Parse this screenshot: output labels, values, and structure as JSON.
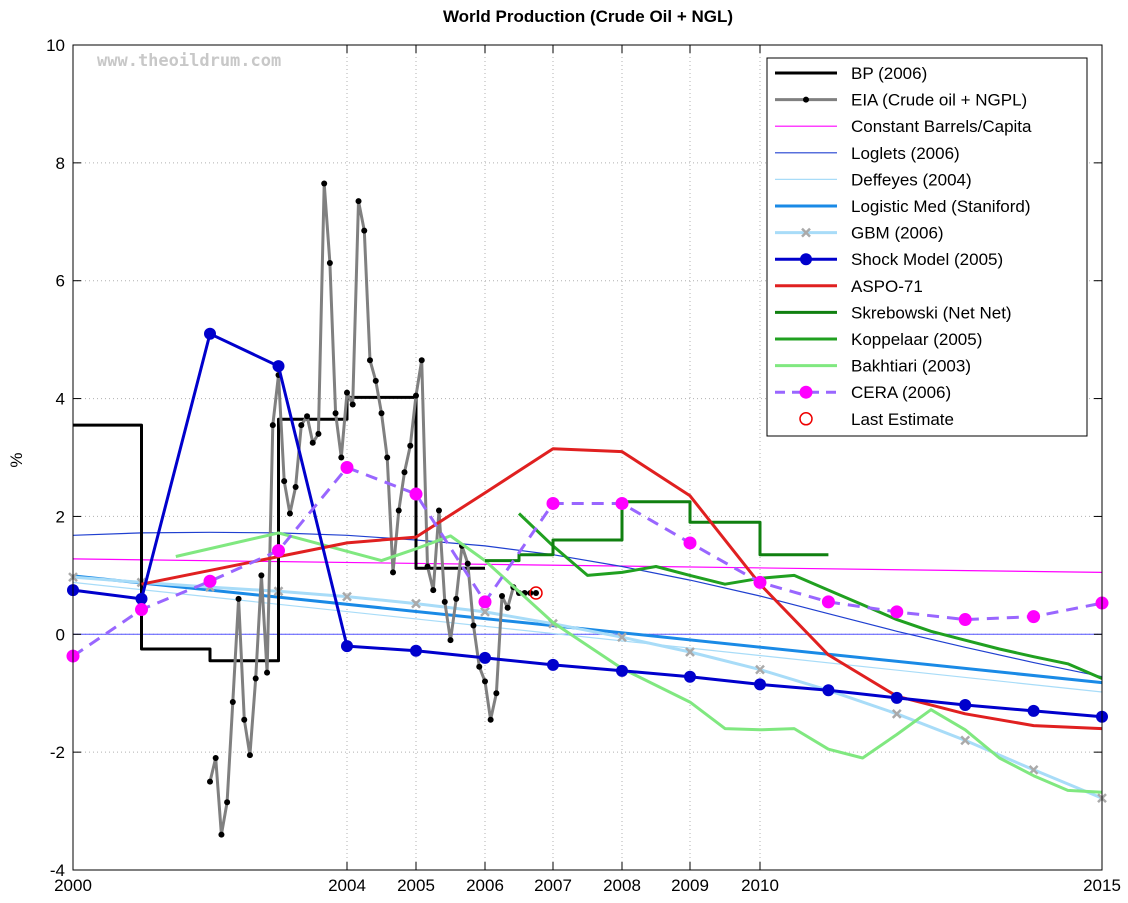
{
  "chart_data": {
    "type": "line",
    "title": "World Production (Crude Oil + NGL)",
    "xlabel": "",
    "ylabel": "%",
    "watermark": "www.theoildrum.com",
    "xlim": [
      2000,
      2015
    ],
    "ylim": [
      -4,
      10
    ],
    "x_ticks": [
      2000,
      2004,
      2005,
      2006,
      2007,
      2008,
      2009,
      2010,
      2015
    ],
    "y_ticks": [
      -4,
      -2,
      0,
      2,
      4,
      6,
      8,
      10
    ],
    "grid": true,
    "legend_position": "top-right",
    "series": [
      {
        "name": "BP (2006)",
        "color": "#000000",
        "style": "step",
        "x": [
          2000,
          2001,
          2001,
          2002,
          2002,
          2003,
          2003,
          2004,
          2004,
          2005,
          2005,
          2006,
          2006
        ],
        "y": [
          3.55,
          3.55,
          -0.25,
          -0.25,
          -0.45,
          -0.45,
          3.65,
          3.65,
          4.02,
          4.02,
          1.12,
          1.12,
          1.12
        ]
      },
      {
        "name": "EIA (Crude oil + NGPL)",
        "color": "#808080",
        "style": "line-dots",
        "x": [
          2002.0,
          2002.083,
          2002.167,
          2002.25,
          2002.333,
          2002.417,
          2002.5,
          2002.583,
          2002.667,
          2002.75,
          2002.833,
          2002.917,
          2003.0,
          2003.083,
          2003.167,
          2003.25,
          2003.333,
          2003.417,
          2003.5,
          2003.583,
          2003.667,
          2003.75,
          2003.833,
          2003.917,
          2004.0,
          2004.083,
          2004.167,
          2004.25,
          2004.333,
          2004.417,
          2004.5,
          2004.583,
          2004.667,
          2004.75,
          2004.833,
          2004.917,
          2005.0,
          2005.083,
          2005.167,
          2005.25,
          2005.333,
          2005.417,
          2005.5,
          2005.583,
          2005.667,
          2005.75,
          2005.833,
          2005.917,
          2006.0,
          2006.083,
          2006.167,
          2006.25,
          2006.333,
          2006.417,
          2006.5,
          2006.583,
          2006.667,
          2006.75
        ],
        "y": [
          -2.5,
          -2.1,
          -3.4,
          -2.85,
          -1.15,
          0.6,
          -1.45,
          -2.05,
          -0.75,
          1.0,
          -0.65,
          3.55,
          4.4,
          2.6,
          2.05,
          2.5,
          3.55,
          3.7,
          3.25,
          3.4,
          7.65,
          6.3,
          3.75,
          3.0,
          4.1,
          3.9,
          7.35,
          6.85,
          4.65,
          4.3,
          3.75,
          3.0,
          1.05,
          2.1,
          2.75,
          3.2,
          4.05,
          4.65,
          1.15,
          0.75,
          2.1,
          0.55,
          -0.1,
          0.6,
          1.5,
          1.2,
          0.15,
          -0.55,
          -0.8,
          -1.45,
          -1.0,
          0.65,
          0.45,
          0.8,
          0.7,
          0.7,
          0.7,
          0.7
        ]
      },
      {
        "name": "Constant Barrels/Capita",
        "color": "#ff00ff",
        "style": "line",
        "width": 1.2,
        "x": [
          2000,
          2015
        ],
        "y": [
          1.28,
          1.05
        ]
      },
      {
        "name": "Loglets (2006)",
        "color": "#2040d0",
        "style": "line",
        "width": 1.2,
        "x": [
          2000,
          2001,
          2002,
          2003,
          2004,
          2005,
          2006,
          2007,
          2008,
          2009,
          2010,
          2011,
          2012,
          2013,
          2014,
          2015
        ],
        "y": [
          1.68,
          1.72,
          1.73,
          1.72,
          1.68,
          1.6,
          1.5,
          1.35,
          1.15,
          0.92,
          0.65,
          0.35,
          0.05,
          -0.22,
          -0.48,
          -0.72
        ]
      },
      {
        "name": "Deffeyes (2004)",
        "color": "#a8dcf8",
        "style": "line",
        "width": 1.2,
        "x": [
          2000,
          2015
        ],
        "y": [
          0.88,
          -0.98
        ]
      },
      {
        "name": "Logistic Med (Staniford)",
        "color": "#1a8ae6",
        "style": "line",
        "width": 3,
        "x": [
          2000,
          2015
        ],
        "y": [
          0.99,
          -0.82
        ]
      },
      {
        "name": "GBM (2006)",
        "color": "#a8dcf8",
        "style": "line-x",
        "width": 3,
        "x": [
          2000,
          2001,
          2002,
          2003,
          2004,
          2005,
          2006,
          2007,
          2008,
          2009,
          2010,
          2011,
          2012,
          2013,
          2014,
          2015
        ],
        "y": [
          0.97,
          0.88,
          0.8,
          0.73,
          0.64,
          0.52,
          0.38,
          0.18,
          -0.05,
          -0.3,
          -0.6,
          -0.95,
          -1.35,
          -1.8,
          -2.3,
          -2.78
        ]
      },
      {
        "name": "Shock Model (2005)",
        "color": "#0000cc",
        "style": "line-dots",
        "width": 3,
        "x": [
          2000,
          2001,
          2002,
          2003,
          2004,
          2005,
          2006,
          2007,
          2008,
          2009,
          2010,
          2011,
          2012,
          2013,
          2014,
          2015
        ],
        "y": [
          0.75,
          0.6,
          5.1,
          4.55,
          -0.2,
          -0.28,
          -0.4,
          -0.52,
          -0.62,
          -0.72,
          -0.85,
          -0.95,
          -1.08,
          -1.2,
          -1.3,
          -1.4
        ]
      },
      {
        "name": "ASPO-71",
        "color": "#e02020",
        "style": "line",
        "width": 3,
        "x": [
          2001,
          2004,
          2005,
          2006,
          2007,
          2008,
          2009,
          2010,
          2011,
          2012,
          2013,
          2014,
          2015
        ],
        "y": [
          0.85,
          1.55,
          1.65,
          2.4,
          3.15,
          3.1,
          2.35,
          0.85,
          -0.35,
          -1.05,
          -1.35,
          -1.55,
          -1.6
        ]
      },
      {
        "name": "Skrebowski (Net Net)",
        "color": "#108010",
        "style": "step",
        "width": 3,
        "x": [
          2006,
          2006.5,
          2006.5,
          2007,
          2007,
          2008,
          2008,
          2009,
          2009,
          2010,
          2010,
          2011
        ],
        "y": [
          1.25,
          1.25,
          1.35,
          1.35,
          1.6,
          1.6,
          2.25,
          2.25,
          1.9,
          1.9,
          1.35,
          1.35
        ]
      },
      {
        "name": "Koppelaar (2005)",
        "color": "#20a020",
        "style": "line",
        "width": 3,
        "x": [
          2006.5,
          2007.0,
          2007.5,
          2008.0,
          2008.5,
          2009.0,
          2009.5,
          2010.0,
          2010.5,
          2011.0,
          2011.5,
          2012.0,
          2012.5,
          2013.0,
          2013.5,
          2014.0,
          2014.5,
          2015.0
        ],
        "y": [
          2.05,
          1.5,
          1.0,
          1.05,
          1.15,
          1.0,
          0.85,
          0.95,
          1.0,
          0.75,
          0.5,
          0.25,
          0.05,
          -0.1,
          -0.25,
          -0.38,
          -0.5,
          -0.75
        ]
      },
      {
        "name": "Bakhtiari (2003)",
        "color": "#80e880",
        "style": "line",
        "width": 3,
        "x": [
          2001.5,
          2003.0,
          2004.5,
          2005.0,
          2005.5,
          2006.0,
          2007.0,
          2008.0,
          2009.0,
          2009.5,
          2010.0,
          2010.5,
          2011.0,
          2011.5,
          2012.0,
          2012.5,
          2013.0,
          2013.5,
          2014.0,
          2014.5,
          2015.0
        ],
        "y": [
          1.32,
          1.72,
          1.25,
          1.45,
          1.67,
          1.25,
          0.2,
          -0.58,
          -1.15,
          -1.6,
          -1.62,
          -1.6,
          -1.95,
          -2.1,
          -1.7,
          -1.28,
          -1.62,
          -2.1,
          -2.4,
          -2.65,
          -2.68
        ]
      },
      {
        "name": "CERA (2006)",
        "color": "#9966ff",
        "marker_color": "#ff00ff",
        "style": "dash-dots",
        "width": 3,
        "x": [
          2000,
          2001,
          2002,
          2003,
          2004,
          2005,
          2006,
          2007,
          2008,
          2009,
          2010,
          2011,
          2012,
          2013,
          2014,
          2015
        ],
        "y": [
          -0.37,
          0.42,
          0.9,
          1.42,
          2.83,
          2.38,
          0.55,
          2.22,
          2.22,
          1.55,
          0.88,
          0.55,
          0.38,
          0.25,
          0.3,
          0.53
        ]
      },
      {
        "name": "Last Estimate",
        "color": "#ee0000",
        "style": "circle",
        "x": [
          2006.75
        ],
        "y": [
          0.7
        ]
      }
    ],
    "legend_entries": [
      "BP (2006)",
      "EIA (Crude oil + NGPL)",
      "Constant Barrels/Capita",
      "Loglets (2006)",
      "Deffeyes (2004)",
      "Logistic Med (Staniford)",
      "GBM (2006)",
      "Shock Model (2005)",
      "ASPO-71",
      "Skrebowski (Net Net)",
      "Koppelaar (2005)",
      "Bakhtiari (2003)",
      "CERA (2006)",
      "Last Estimate"
    ]
  }
}
